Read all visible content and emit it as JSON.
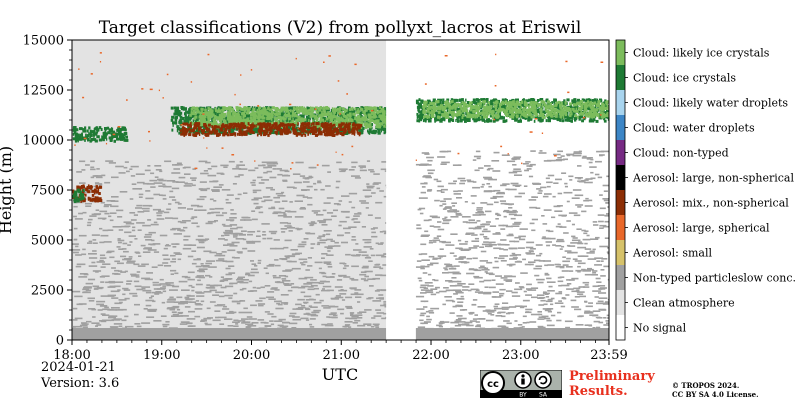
{
  "chart_data": {
    "type": "heatmap",
    "title": "Target classifications (V2) from pollyxt_lacros at Eriswil",
    "xlabel": "UTC",
    "ylabel": "Height (m)",
    "x_ticks": [
      "18:00",
      "19:00",
      "20:00",
      "21:00",
      "22:00",
      "23:00",
      "23:59"
    ],
    "x_tick_hours": [
      0,
      1,
      2,
      3,
      4,
      5,
      5.983
    ],
    "xlim_hours": [
      0,
      5.983
    ],
    "y_ticks": [
      0,
      2500,
      5000,
      7500,
      10000,
      12500,
      15000
    ],
    "ylim": [
      0,
      15000
    ],
    "no_data_gap_hours": [
      3.5,
      3.83
    ],
    "classes": [
      {
        "label": "Cloud: likely ice crystals",
        "color": "#7cbc5c"
      },
      {
        "label": "Cloud: ice crystals",
        "color": "#1e7a34"
      },
      {
        "label": "Cloud: likely water droplets",
        "color": "#a8d4ee"
      },
      {
        "label": "Cloud: water droplets",
        "color": "#3d86c6"
      },
      {
        "label": "Cloud: non-typed",
        "color": "#762a83"
      },
      {
        "label": "Aerosol: large, non-spherical",
        "color": "#000000"
      },
      {
        "label": "Aerosol: mix., non-spherical",
        "color": "#8c2d04"
      },
      {
        "label": "Aerosol: large, spherical",
        "color": "#e9682a"
      },
      {
        "label": "Aerosol: small",
        "color": "#d6c26a"
      },
      {
        "label": "Non-typed particleslow conc.",
        "color": "#a0a0a0"
      },
      {
        "label": "Clean atmosphere",
        "color": "#e3e3e3"
      },
      {
        "label": "No signal",
        "color": "#ffffff"
      }
    ],
    "regions": [
      {
        "class": "Clean atmosphere",
        "x_hours": [
          0,
          3.5
        ],
        "y_m": [
          0,
          15000
        ],
        "note": "background"
      },
      {
        "class": "Non-typed particleslow conc.",
        "x_hours": [
          0,
          3.5
        ],
        "y_m": [
          0,
          9000
        ],
        "density": "medium"
      },
      {
        "class": "Non-typed particleslow conc.",
        "x_hours": [
          3.83,
          5.983
        ],
        "y_m": [
          0,
          9500
        ],
        "density": "medium"
      },
      {
        "class": "Non-typed particleslow conc.",
        "x_hours": [
          0,
          3.5
        ],
        "y_m": [
          0,
          600
        ],
        "density": "solid"
      },
      {
        "class": "Non-typed particleslow conc.",
        "x_hours": [
          3.83,
          5.983
        ],
        "y_m": [
          0,
          600
        ],
        "density": "solid"
      },
      {
        "class": "Cloud: ice crystals",
        "x_hours": [
          0,
          0.6
        ],
        "y_m": [
          10000,
          10700
        ]
      },
      {
        "class": "Cloud: ice crystals",
        "x_hours": [
          1.1,
          3.5
        ],
        "y_m": [
          10400,
          11700
        ]
      },
      {
        "class": "Cloud: likely ice crystals",
        "x_hours": [
          1.3,
          3.5
        ],
        "y_m": [
          10700,
          11700
        ]
      },
      {
        "class": "Cloud: ice crystals",
        "x_hours": [
          3.83,
          5.983
        ],
        "y_m": [
          11000,
          12100
        ]
      },
      {
        "class": "Cloud: likely ice crystals",
        "x_hours": [
          3.9,
          5.983
        ],
        "y_m": [
          11200,
          12000
        ]
      },
      {
        "class": "Aerosol: mix., non-spherical",
        "x_hours": [
          1.2,
          3.2
        ],
        "y_m": [
          10300,
          10900
        ]
      },
      {
        "class": "Aerosol: mix., non-spherical",
        "x_hours": [
          0,
          0.3
        ],
        "y_m": [
          7000,
          7800
        ]
      },
      {
        "class": "Cloud: ice crystals",
        "x_hours": [
          0,
          0.12
        ],
        "y_m": [
          7000,
          7600
        ]
      },
      {
        "class": "Aerosol: large, spherical",
        "x_hours": [
          0,
          5.983
        ],
        "y_m": [
          8500,
          14500
        ],
        "density": "sparse"
      }
    ]
  },
  "footer": {
    "date": "2024-01-21",
    "version": "Version: 3.6",
    "preliminary_line1": "Preliminary",
    "preliminary_line2": "Results.",
    "copyright_line1": "© TROPOS 2024.",
    "copyright_line2": "CC BY SA 4.0 License."
  },
  "license_badge": {
    "text_by": "BY",
    "text_sa": "SA",
    "icon_names": [
      "cc-logo-icon",
      "attribution-icon",
      "share-alike-icon"
    ]
  }
}
